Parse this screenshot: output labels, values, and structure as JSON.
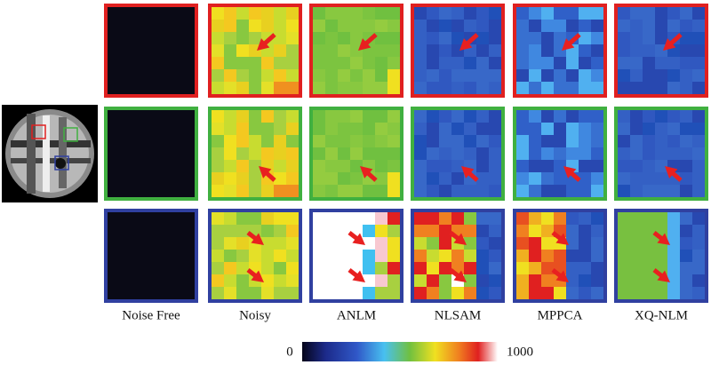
{
  "columns": [
    "Noise Free",
    "Noisy",
    "ANLM",
    "NLSAM",
    "MPPCA",
    "XQ-NLM"
  ],
  "colorbar": {
    "min": 0,
    "max": 1000
  }
}
